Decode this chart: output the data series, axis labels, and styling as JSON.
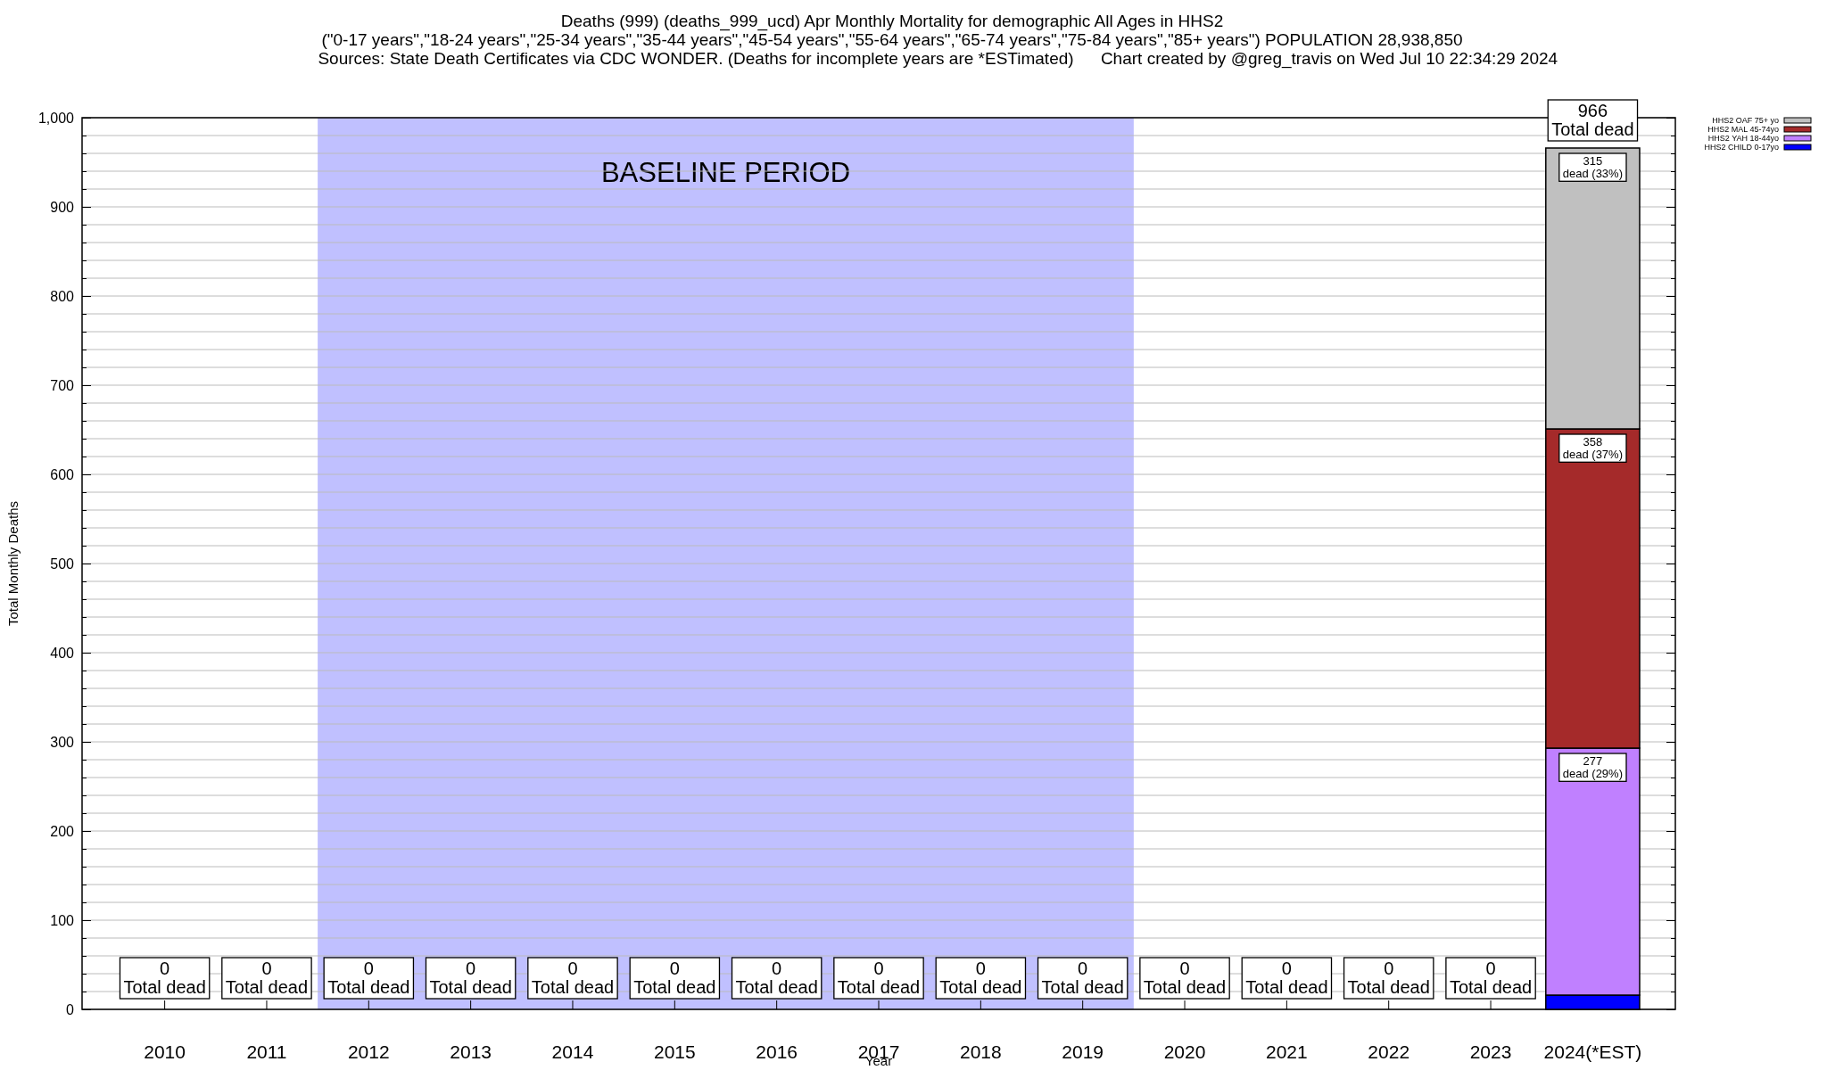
{
  "chart_data": {
    "type": "bar",
    "stacked": true,
    "title": "Deaths (999) (deaths_999_ucd) Apr Monthly Mortality for demographic All Ages in HHS2",
    "subtitle": "(\"0-17 years\",\"18-24 years\",\"25-34 years\",\"35-44 years\",\"45-54 years\",\"55-64 years\",\"65-74 years\",\"75-84 years\",\"85+ years\") POPULATION 28,938,850",
    "annotations": [
      "Sources: State Death Certificates via CDC WONDER. (Deaths for incomplete years are *ESTimated)",
      "Chart created by @greg_travis on Wed Jul 10 22:34:29 2024"
    ],
    "xlabel": "Year",
    "ylabel": "Total Monthly Deaths",
    "categories": [
      "2010",
      "2011",
      "2012",
      "2013",
      "2014",
      "2015",
      "2016",
      "2017",
      "2018",
      "2019",
      "2020",
      "2021",
      "2022",
      "2023",
      "2024(*EST)"
    ],
    "series": [
      {
        "name": "HHS2 CHILD 0-17yo",
        "color": "#0000ff",
        "values": [
          0,
          0,
          0,
          0,
          0,
          0,
          0,
          0,
          0,
          0,
          0,
          0,
          0,
          0,
          16
        ]
      },
      {
        "name": "HHS2 YAH 18-44yo",
        "color": "#c080ff",
        "values": [
          0,
          0,
          0,
          0,
          0,
          0,
          0,
          0,
          0,
          0,
          0,
          0,
          0,
          0,
          277
        ],
        "value_labels": [
          null,
          null,
          null,
          null,
          null,
          null,
          null,
          null,
          null,
          null,
          null,
          null,
          null,
          null,
          "277\ndead (29%)"
        ]
      },
      {
        "name": "HHS2 MAL 45-74yo",
        "color": "#a52a2a",
        "values": [
          0,
          0,
          0,
          0,
          0,
          0,
          0,
          0,
          0,
          0,
          0,
          0,
          0,
          0,
          358
        ],
        "value_labels": [
          null,
          null,
          null,
          null,
          null,
          null,
          null,
          null,
          null,
          null,
          null,
          null,
          null,
          null,
          "358\ndead (37%)"
        ]
      },
      {
        "name": "HHS2 OAF 75+ yo",
        "color": "#c0c0c0",
        "values": [
          0,
          0,
          0,
          0,
          0,
          0,
          0,
          0,
          0,
          0,
          0,
          0,
          0,
          0,
          315
        ],
        "value_labels": [
          null,
          null,
          null,
          null,
          null,
          null,
          null,
          null,
          null,
          null,
          null,
          null,
          null,
          null,
          "315\ndead (33%)"
        ]
      }
    ],
    "totals": [
      "0\nTotal dead",
      "0\nTotal dead",
      "0\nTotal dead",
      "0\nTotal dead",
      "0\nTotal dead",
      "0\nTotal dead",
      "0\nTotal dead",
      "0\nTotal dead",
      "0\nTotal dead",
      "0\nTotal dead",
      "0\nTotal dead",
      "0\nTotal dead",
      "0\nTotal dead",
      "0\nTotal dead",
      "966\nTotal dead"
    ],
    "bands": [
      {
        "axis": "x",
        "from": "2012",
        "to": "2019",
        "label": "BASELINE PERIOD",
        "color": "#c0c0ff"
      }
    ],
    "ylim": [
      0,
      1000
    ],
    "yticks": [
      0,
      {
        "value": 20,
        "label": null
      },
      {
        "value": 40,
        "label": null
      },
      {
        "value": 60,
        "label": null
      },
      {
        "value": 80,
        "label": null
      },
      100,
      {
        "value": 120,
        "label": null
      },
      {
        "value": 140,
        "label": null
      },
      {
        "value": 160,
        "label": null
      },
      {
        "value": 180,
        "label": null
      },
      200,
      {
        "value": 220,
        "label": null
      },
      {
        "value": 240,
        "label": null
      },
      {
        "value": 260,
        "label": null
      },
      {
        "value": 280,
        "label": null
      },
      300,
      {
        "value": 320,
        "label": null
      },
      {
        "value": 340,
        "label": null
      },
      {
        "value": 360,
        "label": null
      },
      {
        "value": 380,
        "label": null
      },
      400,
      {
        "value": 420,
        "label": null
      },
      {
        "value": 440,
        "label": null
      },
      {
        "value": 460,
        "label": null
      },
      {
        "value": 480,
        "label": null
      },
      500,
      {
        "value": 520,
        "label": null
      },
      {
        "value": 540,
        "label": null
      },
      {
        "value": 560,
        "label": null
      },
      {
        "value": 580,
        "label": null
      },
      600,
      {
        "value": 620,
        "label": null
      },
      {
        "value": 640,
        "label": null
      },
      {
        "value": 660,
        "label": null
      },
      {
        "value": 680,
        "label": null
      },
      700,
      {
        "value": 720,
        "label": null
      },
      {
        "value": 740,
        "label": null
      },
      {
        "value": 760,
        "label": null
      },
      {
        "value": 780,
        "label": null
      },
      800,
      {
        "value": 820,
        "label": null
      },
      {
        "value": 840,
        "label": null
      },
      {
        "value": 860,
        "label": null
      },
      {
        "value": 880,
        "label": null
      },
      900,
      {
        "value": 920,
        "label": null
      },
      {
        "value": 940,
        "label": null
      },
      {
        "value": 960,
        "label": null
      },
      {
        "value": 980,
        "label": null
      },
      {
        "value": 1000,
        "label": "1,000"
      }
    ],
    "grid": "y",
    "legend": "top right"
  }
}
